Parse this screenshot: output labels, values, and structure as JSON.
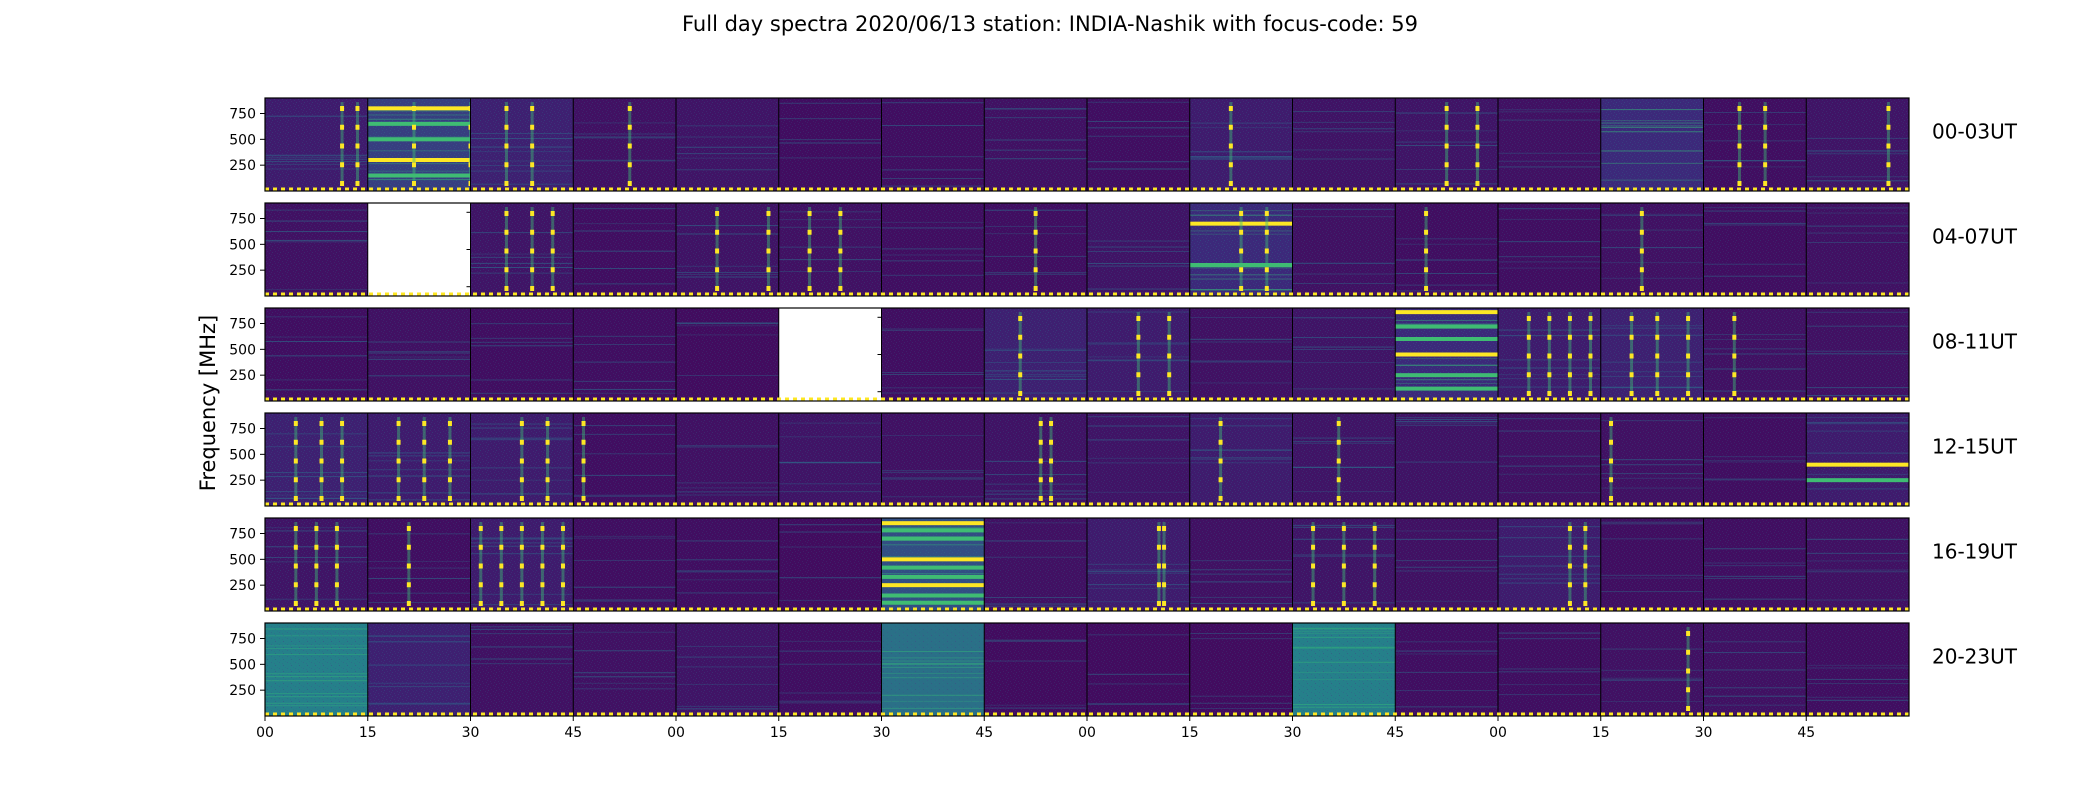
{
  "chart_data": {
    "type": "heatmap",
    "title": "Full day spectra 2020/06/13 station: INDIA-Nashik with focus-code: 59",
    "ylabel": "Frequency [MHz]",
    "xlabel": "",
    "ylim": [
      0,
      900
    ],
    "y_ticks": [
      "750",
      "500",
      "250"
    ],
    "y_tick_values": [
      750,
      500,
      250
    ],
    "x_ticks": [
      "00",
      "15",
      "30",
      "45",
      "00",
      "15",
      "30",
      "45",
      "00",
      "15",
      "30",
      "45",
      "00",
      "15",
      "30",
      "45"
    ],
    "colormap": "viridis",
    "colors": {
      "background": "#440154",
      "low": "#3b2d7e",
      "mid": "#21918c",
      "bright": "#3fbc73",
      "high": "#fde725",
      "no_data": "#ffffff"
    },
    "segments_per_row": 16,
    "segment_minutes": 15,
    "grid": false,
    "rows": [
      {
        "label": "00-03UT",
        "intensity": [
          0.3,
          0.55,
          0.35,
          0.18,
          0.22,
          0.14,
          0.15,
          0.18,
          0.15,
          0.3,
          0.2,
          0.22,
          0.18,
          0.45,
          0.15,
          0.22
        ],
        "missing": [],
        "bright_lines": [
          [],
          [
            800,
            650,
            500,
            300,
            150
          ],
          [],
          [],
          [],
          [],
          [],
          [],
          [],
          [],
          [],
          [],
          [],
          [],
          [],
          []
        ],
        "spikes": [
          [
            0.75,
            0.9
          ],
          [
            0.45,
            1.0
          ],
          [
            0.35,
            0.6
          ],
          [
            0.55
          ],
          [],
          [],
          [],
          [],
          [],
          [
            0.4
          ],
          [],
          [
            0.5,
            0.8
          ],
          [],
          [],
          [
            0.35,
            0.6
          ],
          [
            0.8
          ]
        ]
      },
      {
        "label": "04-07UT",
        "intensity": [
          0.18,
          0.0,
          0.22,
          0.15,
          0.2,
          0.18,
          0.15,
          0.15,
          0.22,
          0.45,
          0.18,
          0.15,
          0.15,
          0.18,
          0.15,
          0.18
        ],
        "missing": [
          1
        ],
        "bright_lines": [
          [],
          [],
          [],
          [],
          [],
          [],
          [],
          [],
          [],
          [
            700,
            300
          ],
          [],
          [],
          [],
          [],
          [],
          []
        ],
        "spikes": [
          [],
          [],
          [
            0.35,
            0.6,
            0.8
          ],
          [],
          [
            0.4,
            0.9
          ],
          [
            0.3,
            0.6
          ],
          [],
          [
            0.5
          ],
          [],
          [
            0.5,
            0.75
          ],
          [],
          [
            0.3
          ],
          [],
          [
            0.4
          ],
          [],
          []
        ]
      },
      {
        "label": "08-11UT",
        "intensity": [
          0.15,
          0.18,
          0.15,
          0.15,
          0.13,
          0.0,
          0.15,
          0.35,
          0.3,
          0.18,
          0.22,
          0.45,
          0.3,
          0.35,
          0.18,
          0.18
        ],
        "missing": [
          5
        ],
        "bright_lines": [
          [],
          [],
          [],
          [],
          [],
          [],
          [],
          [],
          [],
          [],
          [],
          [
            860,
            720,
            600,
            450,
            250,
            120
          ],
          [],
          [],
          [],
          []
        ],
        "spikes": [
          [],
          [],
          [],
          [],
          [],
          [],
          [],
          [
            0.35
          ],
          [
            0.5,
            0.8
          ],
          [],
          [],
          [],
          [
            0.3,
            0.5,
            0.7,
            0.9
          ],
          [
            0.3,
            0.55,
            0.85
          ],
          [
            0.3
          ],
          []
        ]
      },
      {
        "label": "12-15UT",
        "intensity": [
          0.35,
          0.3,
          0.3,
          0.15,
          0.18,
          0.22,
          0.18,
          0.2,
          0.22,
          0.3,
          0.22,
          0.2,
          0.18,
          0.18,
          0.15,
          0.3
        ],
        "missing": [],
        "bright_lines": [
          [],
          [],
          [],
          [],
          [],
          [],
          [],
          [],
          [],
          [],
          [],
          [],
          [],
          [],
          [],
          [
            400,
            250
          ]
        ],
        "spikes": [
          [
            0.3,
            0.55,
            0.75
          ],
          [
            0.3,
            0.55,
            0.8
          ],
          [
            0.5,
            0.75
          ],
          [
            0.1
          ],
          [],
          [],
          [],
          [
            0.55,
            0.65
          ],
          [],
          [
            0.3
          ],
          [
            0.45
          ],
          [],
          [],
          [
            0.1
          ],
          [],
          []
        ]
      },
      {
        "label": "16-19UT",
        "intensity": [
          0.22,
          0.15,
          0.3,
          0.15,
          0.15,
          0.13,
          0.6,
          0.18,
          0.3,
          0.18,
          0.22,
          0.18,
          0.3,
          0.15,
          0.15,
          0.18
        ],
        "missing": [],
        "bright_lines": [
          [],
          [],
          [],
          [],
          [],
          [],
          [
            850,
            780,
            700,
            500,
            420,
            330,
            250,
            150,
            80
          ],
          [],
          [],
          [],
          [],
          [],
          [],
          [],
          [],
          []
        ],
        "spikes": [
          [
            0.3,
            0.5,
            0.7
          ],
          [
            0.4
          ],
          [
            0.1,
            0.3,
            0.5,
            0.7,
            0.9
          ],
          [],
          [],
          [],
          [],
          [],
          [
            0.7,
            0.75
          ],
          [],
          [
            0.2,
            0.5,
            0.8
          ],
          [],
          [
            0.7,
            0.85
          ],
          [],
          [],
          []
        ]
      },
      {
        "label": "20-23UT",
        "intensity": [
          0.75,
          0.35,
          0.18,
          0.18,
          0.22,
          0.15,
          0.7,
          0.13,
          0.13,
          0.13,
          0.75,
          0.15,
          0.15,
          0.18,
          0.18,
          0.15
        ],
        "missing": [],
        "bright_lines": [
          [],
          [],
          [],
          [],
          [],
          [],
          [],
          [],
          [],
          [],
          [],
          [],
          [],
          [],
          [],
          []
        ],
        "spikes": [
          [],
          [],
          [],
          [],
          [],
          [],
          [],
          [],
          [],
          [],
          [],
          [],
          [],
          [
            0.85
          ],
          [],
          []
        ]
      }
    ]
  }
}
